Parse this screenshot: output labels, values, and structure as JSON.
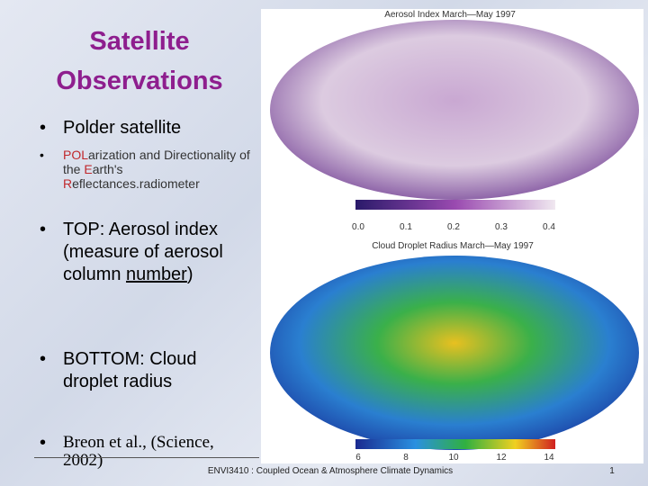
{
  "slide": {
    "title": [
      "Satellite",
      "Observations"
    ],
    "bullets": [
      {
        "segments": [
          "Polder satellite"
        ]
      },
      {
        "segments": [
          "POL",
          "arization and Directionality of the ",
          "E",
          "arth's ",
          "R",
          "eflectances.radiometer"
        ]
      },
      {
        "segments": [
          "TOP: Aerosol index (measure of aerosol column ",
          "number",
          ")"
        ]
      },
      {
        "segments": [
          "BOTTOM: Cloud droplet radius"
        ]
      },
      {
        "segments": [
          "Breon et al., (Science, 2002)"
        ]
      }
    ],
    "top_map": {
      "title": "Aerosol Index   March—May 1997",
      "scale": [
        "0.0",
        "0.1",
        "0.2",
        "0.3",
        "0.4"
      ]
    },
    "bottom_map": {
      "title": "Cloud Droplet Radius   March—May 1997",
      "scale": [
        "6",
        "8",
        "10",
        "12",
        "14"
      ]
    },
    "footer": "ENVI3410 : Coupled Ocean & Atmosphere Climate Dynamics",
    "page_number": "1"
  }
}
